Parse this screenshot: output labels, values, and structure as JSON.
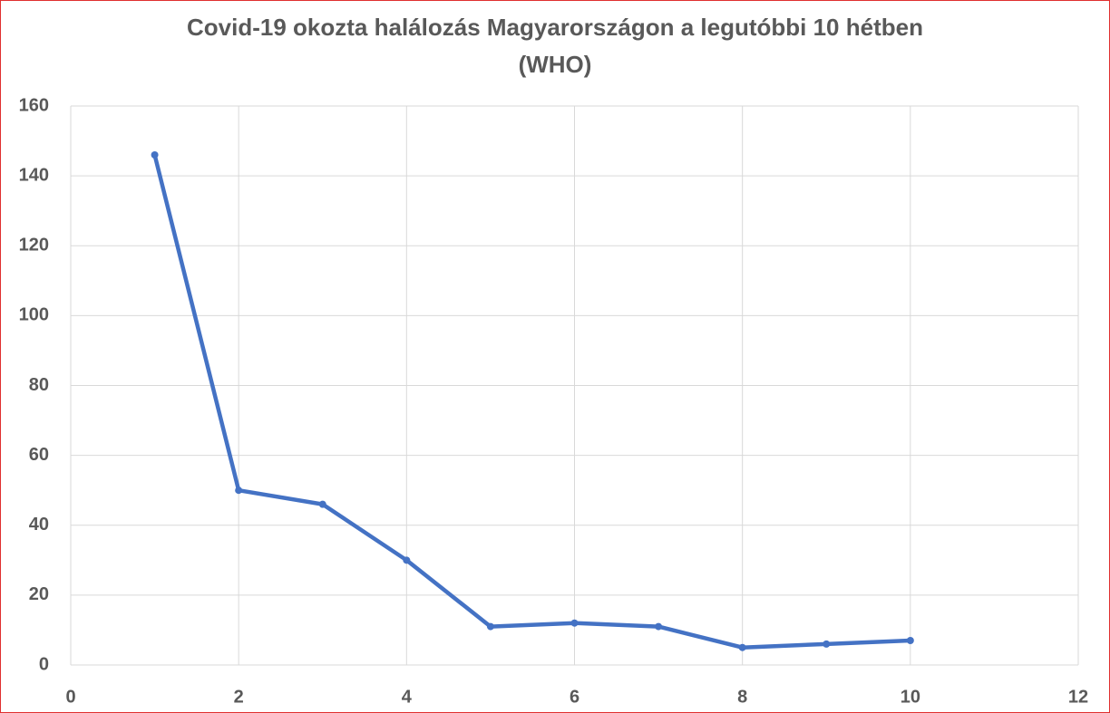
{
  "chart_data": {
    "type": "line",
    "title": "Covid-19 okozta halálozás Magyarországon a legutóbbi 10 hétben",
    "subtitle": "(WHO)",
    "series": [
      {
        "color": "#4472c4",
        "x": [
          1,
          2,
          3,
          4,
          5,
          6,
          7,
          8,
          9,
          10
        ],
        "values": [
          146,
          50,
          46,
          30,
          11,
          12,
          11,
          5,
          6,
          7
        ]
      }
    ],
    "xlim": [
      0,
      12
    ],
    "xticks": [
      0,
      2,
      4,
      6,
      8,
      10,
      12
    ],
    "ylim": [
      0,
      160
    ],
    "yticks": [
      0,
      20,
      40,
      60,
      80,
      100,
      120,
      140,
      160
    ],
    "grid": true
  }
}
